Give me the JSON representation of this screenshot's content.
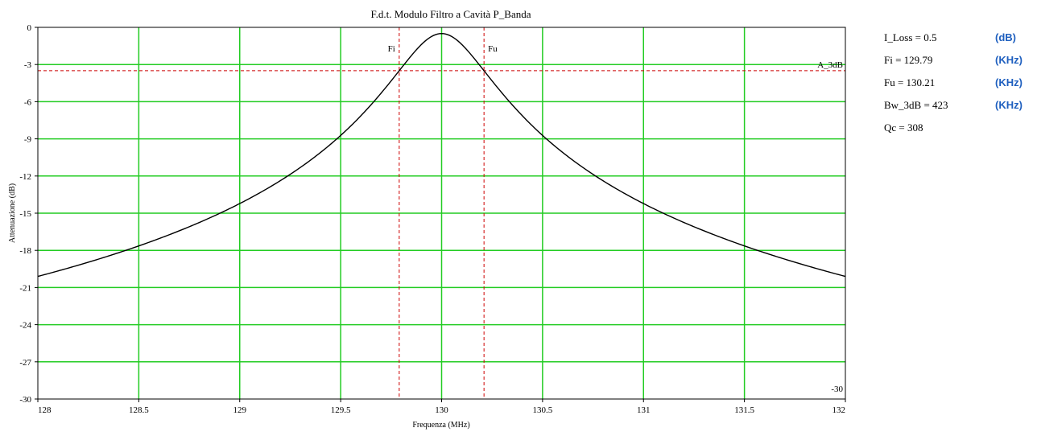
{
  "colors": {
    "background": "#ffffff",
    "grid": "#22cc22",
    "curve": "#000000",
    "marker": "#cc0000",
    "unit": "#1e5fbf"
  },
  "chart_data": {
    "type": "line",
    "title": "F.d.t. Modulo Filtro a Cavità P_Banda",
    "xlabel": "Frequenza (MHz)",
    "ylabel": "Attenuazione (dB)",
    "xlim": [
      128,
      132
    ],
    "ylim": [
      -30,
      0
    ],
    "x_ticks": [
      128,
      128.5,
      129,
      129.5,
      130,
      130.5,
      131,
      131.5,
      132
    ],
    "x_tick_labels": [
      "128",
      "128.5",
      "129",
      "129.5",
      "130",
      "130.5",
      "131",
      "131.5",
      "132"
    ],
    "y_ticks": [
      0,
      -3,
      -6,
      -9,
      -12,
      -15,
      -18,
      -21,
      -24,
      -27,
      -30
    ],
    "y_tick_labels": [
      "0",
      "-3",
      "-6",
      "-9",
      "-12",
      "-15",
      "-18",
      "-21",
      "-24",
      "-27",
      "-30"
    ],
    "grid": true,
    "series": [
      {
        "x": [
          128,
          128.25,
          128.5,
          128.75,
          129,
          129.25,
          129.5,
          129.6,
          129.7,
          129.79,
          129.85,
          129.9,
          129.95,
          130,
          130.05,
          130.1,
          130.15,
          130.21,
          130.3,
          130.4,
          130.5,
          130.75,
          131,
          131.25,
          131.5,
          131.75,
          132
        ],
        "y": [
          -20.1,
          -19.0,
          -17.7,
          -16.1,
          -14.2,
          -11.9,
          -8.9,
          -7.3,
          -5.5,
          -3.5,
          -2.4,
          -1.5,
          -0.8,
          -0.5,
          -0.8,
          -1.5,
          -2.4,
          -3.5,
          -5.5,
          -7.3,
          -8.9,
          -11.9,
          -14.2,
          -16.1,
          -17.7,
          -19.0,
          -20.1
        ]
      }
    ],
    "markers": {
      "vertical": [
        {
          "label": "Fi",
          "x": 129.79
        },
        {
          "label": "Fu",
          "x": 130.21
        }
      ],
      "horizontal": {
        "label": "A_3dB",
        "y": -3.5
      }
    },
    "corner_label": "-30"
  },
  "params": [
    {
      "text": "I_Loss = 0.5",
      "unit": "(dB)"
    },
    {
      "text": "Fi = 129.79",
      "unit": "(KHz)"
    },
    {
      "text": "Fu = 130.21",
      "unit": "(KHz)"
    },
    {
      "text": "Bw_3dB = 423",
      "unit": "(KHz)"
    },
    {
      "text": "Qc = 308",
      "unit": ""
    }
  ]
}
